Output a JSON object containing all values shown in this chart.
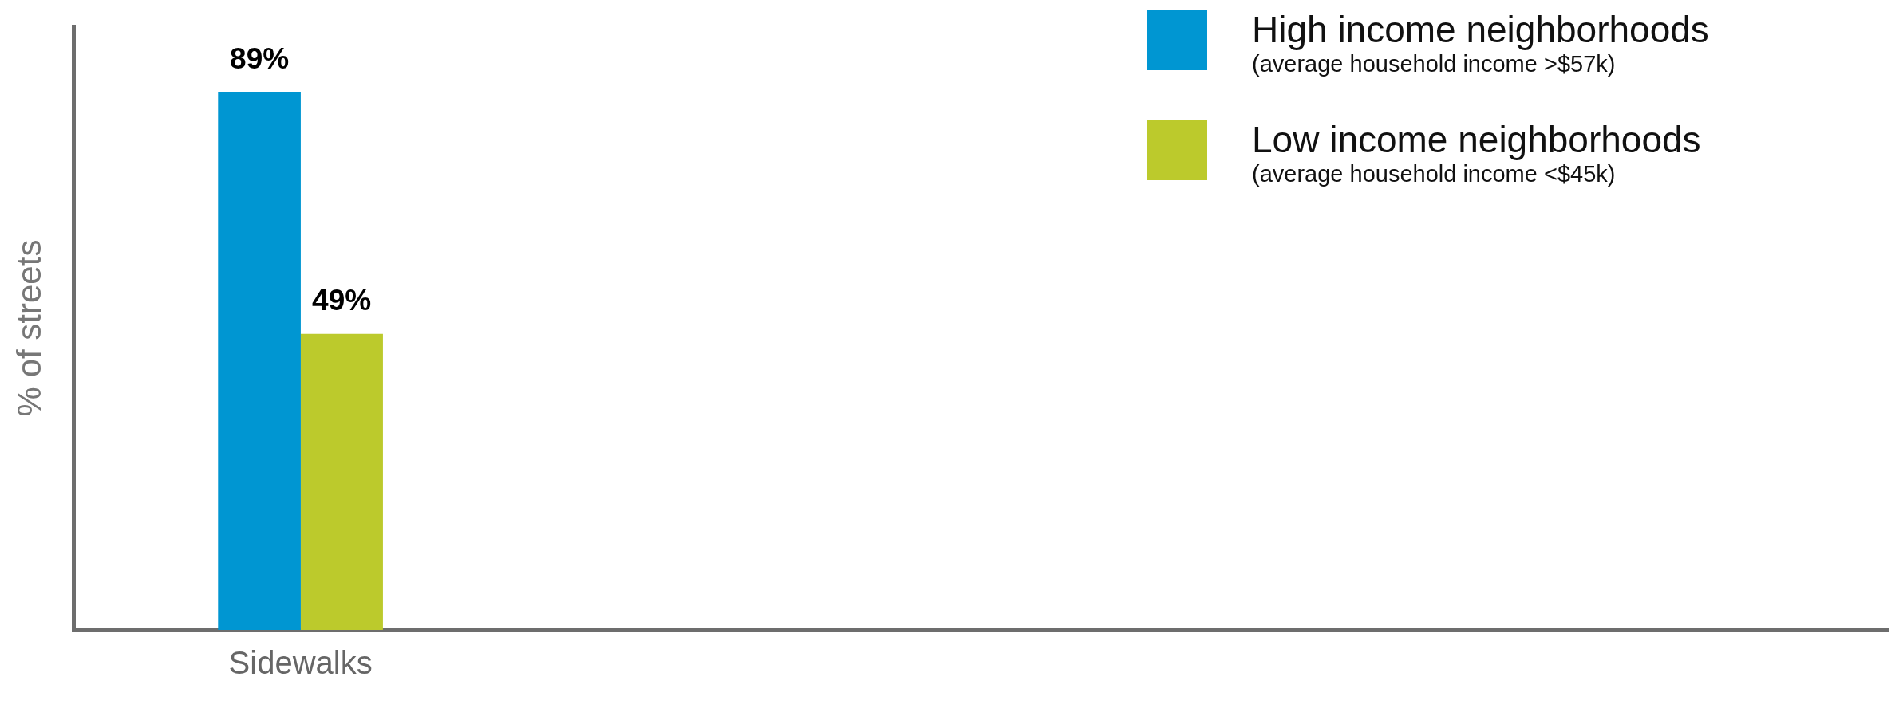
{
  "chart_data": {
    "type": "bar",
    "ylabel": "% of streets",
    "categories": [
      "Sidewalks"
    ],
    "series": [
      {
        "name": "High income neighborhoods\n(average household income >$57k)",
        "color": "#0096d2",
        "values": [
          89
        ],
        "value_labels": [
          "89%"
        ]
      },
      {
        "name": "Low income neighborhoods\n(average household income <$45k)",
        "color": "#bcca2c",
        "values": [
          49
        ],
        "value_labels": [
          "49%"
        ]
      }
    ],
    "legend": "top right",
    "grid": false
  }
}
